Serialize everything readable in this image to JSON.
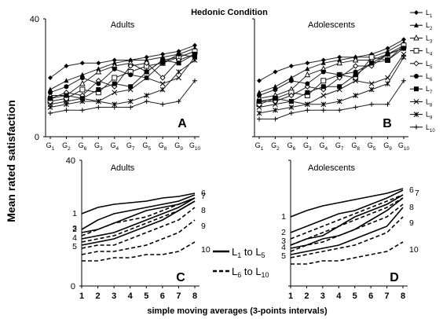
{
  "figure": {
    "title": "Hedonic Condition",
    "ylabel": "Mean rated satisfaction",
    "xlabel_bottom": "simple moving averages (3-points intervals)",
    "legend_labels": [
      "L1",
      "L2",
      "L3",
      "L4",
      "L5",
      "L6",
      "L7",
      "L8",
      "L9",
      "L10"
    ],
    "legend_style": {
      "solid": "L1 to L5",
      "dashed": "L6 to L10"
    },
    "legend_solid": {
      "a": "L",
      "a_sub": "1",
      "b": " to L",
      "b_sub": "5"
    },
    "legend_dashed": {
      "a": "L",
      "a_sub": "6",
      "b": " to L",
      "b_sub": "10"
    }
  },
  "chart_data": [
    {
      "type": "line",
      "panel_letter": "A",
      "subtitle": "Adults",
      "x": [
        "G1",
        "G2",
        "G6",
        "G3",
        "G4",
        "G7",
        "G5",
        "G8",
        "G9",
        "G10"
      ],
      "ylim": [
        0,
        40
      ],
      "yticks": [
        0,
        40
      ],
      "series": [
        {
          "name": "L1",
          "values": [
            20,
            24,
            25,
            25,
            26,
            26,
            27,
            28,
            29,
            31
          ]
        },
        {
          "name": "L2",
          "values": [
            16,
            19,
            21,
            23,
            25,
            26,
            26,
            27,
            28,
            30
          ]
        },
        {
          "name": "L3",
          "values": [
            14,
            14,
            18,
            22,
            24,
            25,
            22,
            26,
            27,
            29
          ]
        },
        {
          "name": "L4",
          "values": [
            12,
            13,
            16,
            15,
            20,
            22,
            24,
            25,
            27,
            29
          ]
        },
        {
          "name": "L5",
          "values": [
            13,
            15,
            14,
            19,
            17,
            24,
            25,
            20,
            26,
            28
          ]
        },
        {
          "name": "L6",
          "values": [
            15,
            17,
            20,
            18,
            23,
            21,
            20,
            25,
            28,
            27
          ]
        },
        {
          "name": "L7",
          "values": [
            13,
            14,
            13,
            16,
            18,
            17,
            22,
            26,
            25,
            28
          ]
        },
        {
          "name": "L8",
          "values": [
            11,
            12,
            13,
            12,
            15,
            16,
            20,
            18,
            20,
            27
          ]
        },
        {
          "name": "L9",
          "values": [
            10,
            11,
            12,
            12,
            11,
            12,
            14,
            16,
            22,
            26
          ]
        },
        {
          "name": "L10",
          "values": [
            8,
            9,
            9,
            10,
            10,
            10,
            12,
            11,
            12,
            19
          ]
        }
      ]
    },
    {
      "type": "line",
      "panel_letter": "B",
      "subtitle": "Adolescents",
      "x": [
        "G1",
        "G2",
        "G6",
        "G3",
        "G4",
        "G7",
        "G8",
        "G5",
        "G9",
        "G10"
      ],
      "ylim": [
        0,
        40
      ],
      "yticks": [
        0,
        40
      ],
      "series": [
        {
          "name": "L1",
          "values": [
            19,
            22,
            24,
            25,
            26,
            27,
            27,
            28,
            30,
            33
          ]
        },
        {
          "name": "L2",
          "values": [
            15,
            17,
            20,
            23,
            25,
            26,
            27,
            27,
            29,
            32
          ]
        },
        {
          "name": "L3",
          "values": [
            13,
            14,
            16,
            21,
            23,
            25,
            26,
            26,
            28,
            31
          ]
        },
        {
          "name": "L4",
          "values": [
            11,
            13,
            15,
            14,
            19,
            21,
            20,
            27,
            26,
            31
          ]
        },
        {
          "name": "L5",
          "values": [
            12,
            12,
            14,
            17,
            16,
            20,
            24,
            24,
            28,
            30
          ]
        },
        {
          "name": "L6",
          "values": [
            14,
            16,
            19,
            18,
            22,
            21,
            22,
            25,
            28,
            30
          ]
        },
        {
          "name": "L7",
          "values": [
            12,
            13,
            12,
            15,
            17,
            17,
            21,
            25,
            26,
            30
          ]
        },
        {
          "name": "L8",
          "values": [
            10,
            11,
            12,
            11,
            14,
            16,
            19,
            18,
            20,
            28
          ]
        },
        {
          "name": "L9",
          "values": [
            8,
            9,
            10,
            11,
            11,
            12,
            14,
            16,
            18,
            27
          ]
        },
        {
          "name": "L10",
          "values": [
            6,
            6,
            8,
            9,
            9,
            9,
            10,
            11,
            11,
            19
          ]
        }
      ]
    },
    {
      "type": "line",
      "panel_letter": "C",
      "subtitle": "Adults",
      "x": [
        1,
        2,
        3,
        4,
        5,
        6,
        7,
        8
      ],
      "ylim": [
        0,
        40
      ],
      "yticks": [
        0,
        40
      ],
      "series": [
        {
          "name": "1",
          "values": [
            23,
            25,
            26,
            26.5,
            27,
            28,
            28.5,
            29.5
          ]
        },
        {
          "name": "2",
          "values": [
            18,
            21,
            23,
            24,
            25,
            26,
            27,
            29
          ]
        },
        {
          "name": "3",
          "values": [
            17,
            18,
            20,
            22,
            24,
            25,
            26,
            28
          ]
        },
        {
          "name": "4",
          "values": [
            15,
            16,
            17,
            19,
            21,
            23,
            25,
            28
          ]
        },
        {
          "name": "5",
          "values": [
            13,
            14,
            15,
            17,
            19,
            21,
            24,
            27
          ]
        },
        {
          "name": "6",
          "values": [
            16,
            18,
            20,
            21,
            22,
            24,
            26,
            28
          ]
        },
        {
          "name": "7",
          "values": [
            14,
            15,
            16,
            18,
            20,
            22,
            24,
            27
          ]
        },
        {
          "name": "8",
          "values": [
            12,
            13,
            13,
            15,
            17,
            19,
            21,
            25
          ]
        },
        {
          "name": "9",
          "values": [
            10,
            11,
            11,
            12,
            13,
            15,
            17,
            21
          ]
        },
        {
          "name": "10",
          "values": [
            8,
            8,
            9,
            9,
            10,
            10,
            11,
            14
          ]
        }
      ]
    },
    {
      "type": "line",
      "panel_letter": "D",
      "subtitle": "Adolescents",
      "x": [
        1,
        2,
        3,
        4,
        5,
        6,
        7,
        8
      ],
      "ylim": [
        0,
        40
      ],
      "yticks": [
        0,
        40
      ],
      "series": [
        {
          "name": "1",
          "values": [
            22,
            24,
            25.5,
            26.5,
            27.5,
            28.5,
            29.5,
            31
          ]
        },
        {
          "name": "2",
          "values": [
            17,
            19,
            21,
            23,
            24,
            26,
            28,
            30.5
          ]
        },
        {
          "name": "3",
          "values": [
            13,
            15,
            16,
            19,
            22,
            24,
            26,
            29
          ]
        },
        {
          "name": "4",
          "values": [
            12,
            13,
            15,
            16,
            18,
            21,
            24,
            28
          ]
        },
        {
          "name": "5",
          "values": [
            10,
            11,
            12,
            13,
            15,
            17,
            19,
            25
          ]
        },
        {
          "name": "6",
          "values": [
            15,
            17,
            19,
            21,
            23,
            25,
            27,
            29
          ]
        },
        {
          "name": "7",
          "values": [
            13,
            15,
            17,
            19,
            21,
            23,
            25,
            28
          ]
        },
        {
          "name": "8",
          "values": [
            11,
            13,
            14,
            16,
            18,
            20,
            22,
            26
          ]
        },
        {
          "name": "9",
          "values": [
            9,
            10,
            11,
            12,
            13,
            15,
            17,
            22
          ]
        },
        {
          "name": "10",
          "values": [
            7,
            7,
            8,
            8,
            9,
            10,
            11,
            14
          ]
        }
      ]
    }
  ]
}
